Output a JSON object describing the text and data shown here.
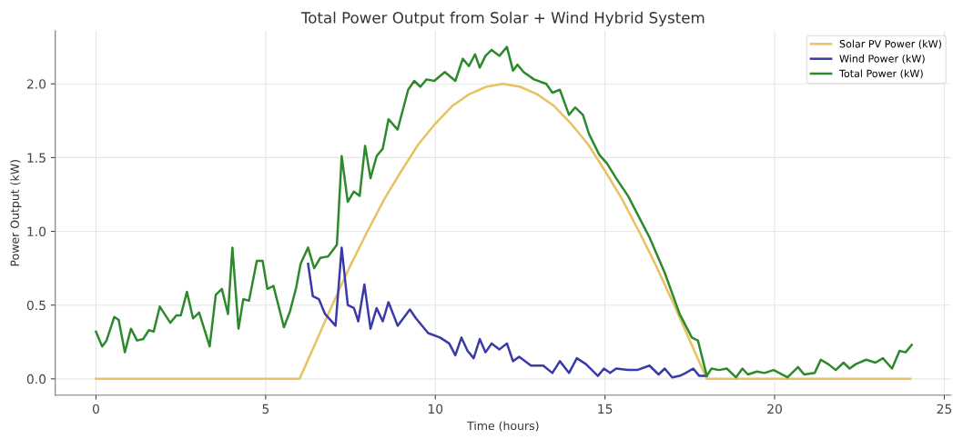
{
  "chart_data": {
    "type": "line",
    "title": "Total Power Output from Solar + Wind Hybrid System",
    "xlabel": "Time (hours)",
    "ylabel": "Power Output (kW)",
    "xlim": [
      -1.2,
      25.2
    ],
    "xticks": [
      0,
      5,
      10,
      15,
      20,
      25
    ],
    "ylim": [
      -0.11,
      2.36
    ],
    "yticks": [
      {
        "value": 0,
        "label": "0.0"
      },
      0.5,
      {
        "value": 1,
        "label": "1.0"
      },
      1.5,
      {
        "value": 2,
        "label": "2.0"
      }
    ],
    "grid": true,
    "legend": "top right",
    "line_style": "solid",
    "marker": "none",
    "series": [
      {
        "name": "Solar PV Power (kW)",
        "color": "#e8c262",
        "x": [
          0,
          6,
          6.5,
          7,
          7.5,
          8,
          8.5,
          9,
          9.5,
          10,
          10.5,
          11,
          11.5,
          12,
          12.5,
          13,
          13.5,
          14,
          14.5,
          15,
          15.5,
          16,
          16.5,
          17,
          17.5,
          18,
          24
        ],
        "values": [
          0,
          0,
          0.26,
          0.52,
          0.77,
          1.0,
          1.22,
          1.41,
          1.59,
          1.73,
          1.85,
          1.93,
          1.98,
          2.0,
          1.98,
          1.93,
          1.85,
          1.73,
          1.59,
          1.41,
          1.22,
          1.0,
          0.77,
          0.52,
          0.26,
          0,
          0
        ]
      },
      {
        "name": "Wind Power (kW)",
        "color": "#3a3aa8",
        "x": [
          6.25,
          6.39,
          6.57,
          6.75,
          7.06,
          7.24,
          7.42,
          7.6,
          7.73,
          7.91,
          8.09,
          8.27,
          8.45,
          8.62,
          8.89,
          9.25,
          9.43,
          9.79,
          10.14,
          10.41,
          10.59,
          10.77,
          10.95,
          11.13,
          11.31,
          11.48,
          11.66,
          11.89,
          12.11,
          12.29,
          12.47,
          12.82,
          13.18,
          13.45,
          13.67,
          13.94,
          14.17,
          14.44,
          14.79,
          14.97,
          15.15,
          15.33,
          15.68,
          15.95,
          16.31,
          16.58,
          16.76,
          16.98,
          17.2,
          17.38,
          17.6,
          17.78,
          18.0
        ],
        "values": [
          0.78,
          0.56,
          0.54,
          0.44,
          0.36,
          0.89,
          0.5,
          0.48,
          0.39,
          0.64,
          0.34,
          0.48,
          0.39,
          0.52,
          0.36,
          0.47,
          0.41,
          0.31,
          0.28,
          0.24,
          0.16,
          0.28,
          0.19,
          0.14,
          0.27,
          0.18,
          0.24,
          0.2,
          0.24,
          0.12,
          0.15,
          0.09,
          0.09,
          0.04,
          0.12,
          0.04,
          0.14,
          0.1,
          0.02,
          0.07,
          0.04,
          0.07,
          0.06,
          0.06,
          0.09,
          0.03,
          0.07,
          0.01,
          0.02,
          0.04,
          0.07,
          0.02,
          0.02
        ]
      },
      {
        "name": "Total Power (kW)",
        "color": "#2c8a2c",
        "x": [
          0,
          0.18,
          0.31,
          0.54,
          0.67,
          0.85,
          1.03,
          1.21,
          1.39,
          1.56,
          1.7,
          1.88,
          2.19,
          2.37,
          2.5,
          2.68,
          2.86,
          3.04,
          3.35,
          3.53,
          3.71,
          3.89,
          4.02,
          4.2,
          4.34,
          4.51,
          4.74,
          4.91,
          5.05,
          5.23,
          5.54,
          5.72,
          5.9,
          6.03,
          6.25,
          6.43,
          6.61,
          6.84,
          7.1,
          7.24,
          7.42,
          7.6,
          7.77,
          7.93,
          8.09,
          8.27,
          8.45,
          8.62,
          8.89,
          9.2,
          9.38,
          9.56,
          9.74,
          9.97,
          10.28,
          10.59,
          10.81,
          10.99,
          11.17,
          11.31,
          11.48,
          11.66,
          11.89,
          12.11,
          12.29,
          12.42,
          12.6,
          12.91,
          13.27,
          13.45,
          13.67,
          13.94,
          14.12,
          14.35,
          14.53,
          14.83,
          15.06,
          15.33,
          15.68,
          16.31,
          16.76,
          17.2,
          17.56,
          17.74,
          18.0,
          18.14,
          18.36,
          18.59,
          18.86,
          19.05,
          19.21,
          19.48,
          19.7,
          19.97,
          20.38,
          20.69,
          20.87,
          21.18,
          21.36,
          21.58,
          21.8,
          22.03,
          22.21,
          22.39,
          22.7,
          22.97,
          23.19,
          23.46,
          23.68,
          23.86,
          24.04
        ],
        "values": [
          0.32,
          0.22,
          0.26,
          0.42,
          0.4,
          0.18,
          0.34,
          0.26,
          0.27,
          0.33,
          0.32,
          0.49,
          0.38,
          0.43,
          0.43,
          0.59,
          0.41,
          0.45,
          0.22,
          0.57,
          0.61,
          0.44,
          0.89,
          0.34,
          0.54,
          0.53,
          0.8,
          0.8,
          0.61,
          0.63,
          0.35,
          0.46,
          0.62,
          0.78,
          0.89,
          0.75,
          0.82,
          0.83,
          0.91,
          1.51,
          1.2,
          1.27,
          1.24,
          1.58,
          1.36,
          1.51,
          1.56,
          1.76,
          1.69,
          1.96,
          2.02,
          1.98,
          2.03,
          2.02,
          2.08,
          2.02,
          2.17,
          2.12,
          2.2,
          2.11,
          2.19,
          2.23,
          2.19,
          2.25,
          2.09,
          2.13,
          2.08,
          2.03,
          2.0,
          1.94,
          1.96,
          1.79,
          1.84,
          1.79,
          1.66,
          1.52,
          1.46,
          1.36,
          1.24,
          0.96,
          0.72,
          0.44,
          0.28,
          0.26,
          0.02,
          0.07,
          0.06,
          0.07,
          0.01,
          0.07,
          0.03,
          0.05,
          0.04,
          0.06,
          0.01,
          0.08,
          0.03,
          0.04,
          0.13,
          0.1,
          0.06,
          0.11,
          0.07,
          0.1,
          0.13,
          0.11,
          0.14,
          0.07,
          0.19,
          0.18,
          0.23
        ]
      }
    ]
  }
}
